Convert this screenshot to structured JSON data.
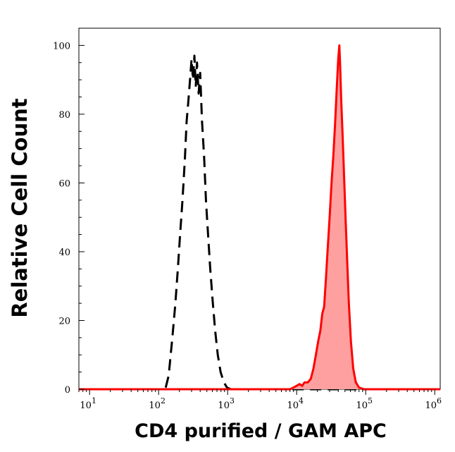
{
  "chart_data": {
    "type": "area",
    "title": "",
    "xlabel": "CD4 purified / GAM APC",
    "ylabel": "Relative Cell Count",
    "xscale": "log",
    "xlim": [
      7,
      1200000
    ],
    "ylim": [
      0,
      105
    ],
    "x_ticks": [
      {
        "value": 10,
        "base": "10",
        "exp": "1"
      },
      {
        "value": 100,
        "base": "10",
        "exp": "2"
      },
      {
        "value": 1000,
        "base": "10",
        "exp": "3"
      },
      {
        "value": 10000,
        "base": "10",
        "exp": "4"
      },
      {
        "value": 100000,
        "base": "10",
        "exp": "5"
      },
      {
        "value": 1000000,
        "base": "10",
        "exp": "6"
      }
    ],
    "y_ticks": [
      0,
      20,
      40,
      60,
      80,
      100
    ],
    "grid": false,
    "legend": "none",
    "series": [
      {
        "style": "dashed",
        "color": "#000000",
        "fill": "none",
        "x": [
          7,
          125,
          140,
          158,
          175,
          190,
          205,
          222,
          240,
          255,
          270,
          285,
          300,
          315,
          330,
          345,
          360,
          380,
          400,
          425,
          455,
          485,
          520,
          560,
          610,
          660,
          720,
          790,
          880,
          980,
          1120,
          1400,
          1200000
        ],
        "y": [
          0,
          0,
          4,
          15,
          25,
          35,
          45,
          55,
          67,
          78,
          84,
          90,
          96,
          90,
          97,
          88,
          95,
          86,
          92,
          78,
          68,
          55,
          45,
          35,
          25,
          17,
          10,
          5,
          2,
          0.5,
          0,
          0,
          0
        ]
      },
      {
        "style": "solid",
        "color": "#ff0000",
        "fill": "#ffa0a0",
        "x": [
          7,
          8000,
          9000,
          10000,
          11000,
          12000,
          13000,
          14500,
          16000,
          17500,
          19000,
          20500,
          22000,
          23500,
          25000,
          26500,
          28000,
          30000,
          32000,
          34000,
          36000,
          38000,
          40000,
          41500,
          42500,
          44000,
          46000,
          48000,
          51000,
          54000,
          57000,
          61000,
          66000,
          72000,
          80000,
          95000,
          1200000
        ],
        "y": [
          0,
          0,
          0.5,
          1,
          1.5,
          1,
          2,
          2,
          3,
          6,
          10,
          14,
          17,
          22,
          24,
          32,
          40,
          50,
          60,
          68,
          77,
          87,
          96,
          100,
          95,
          85,
          75,
          65,
          50,
          37,
          25,
          14,
          6,
          2,
          0.5,
          0,
          0
        ]
      }
    ]
  }
}
